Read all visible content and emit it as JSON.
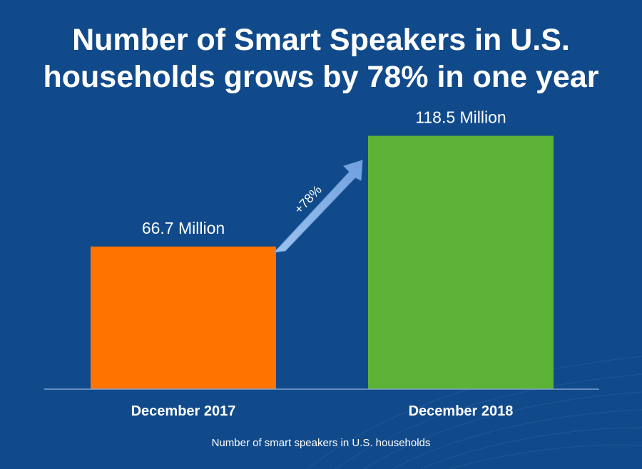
{
  "chart_data": {
    "type": "bar",
    "title": "Number of Smart Speakers in U.S. households grows by 78% in one year",
    "categories": [
      "December 2017",
      "December 2018"
    ],
    "values": [
      66.7,
      118.5
    ],
    "data_labels": [
      "66.7 Million",
      "118.5 Million"
    ],
    "unit": "Million",
    "ylim": [
      0,
      130
    ],
    "grid": false,
    "legend": "none",
    "annotation": "+78%",
    "caption": "Number of smart speakers in U.S. households",
    "colors": {
      "background": "#114A8B",
      "bars": [
        "#FF7400",
        "#5CB335"
      ],
      "arrow": "#8DB8EC",
      "baseline": "#7FA3CF"
    }
  }
}
